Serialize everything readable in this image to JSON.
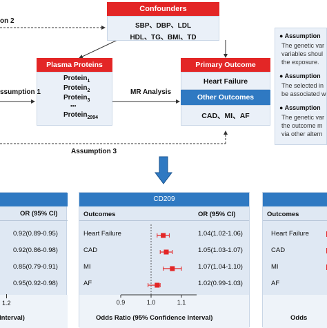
{
  "top": {
    "confounders": {
      "title": "Confounders",
      "line1": "SBP、DBP、LDL",
      "line2": "HDL、TG、BMI、TD"
    },
    "plasma": {
      "title": "Plasma Proteins",
      "p1": "Protein",
      "p1_sub": "1",
      "p2": "Protein",
      "p2_sub": "2",
      "p3": "Protein",
      "p3_sub": "3",
      "dots": "•••",
      "pn": "Protein",
      "pn_sub": "2994"
    },
    "primary": {
      "title": "Primary Outcome",
      "value": "Heart Failure"
    },
    "other": {
      "title": "Other Outcomes",
      "value": "CAD、MI、AF"
    },
    "labels": {
      "assumption1": "ssumption 1",
      "assumption2": "on 2",
      "assumption3": "Assumption 3",
      "mr": "MR Analysis"
    },
    "assumptions": [
      {
        "title": "Assumption",
        "text1": "The genetic var",
        "text2": "variables shoul",
        "text3": "the exposure."
      },
      {
        "title": "Assumption",
        "text1": "The selected in",
        "text2": "be associated w"
      },
      {
        "title": "Assumption",
        "text1": "The genetic var",
        "text2": "the outcome m",
        "text3": "via other altern"
      }
    ]
  },
  "left_panel": {
    "col_header": "OR (95% CI)",
    "values": [
      "0.92(0.89-0.95)",
      "0.92(0.86-0.98)",
      "0.85(0.79-0.91)",
      "0.95(0.92-0.98)"
    ],
    "tick": "1.2",
    "axis_label": "Interval)"
  },
  "center_panel": {
    "title": "CD209",
    "col_outcomes": "Outcomes",
    "col_or": "OR (95% CI)",
    "rows": [
      {
        "outcome": "Heart Failure",
        "or_text": "1.04(1.02-1.06)"
      },
      {
        "outcome": "CAD",
        "or_text": "1.05(1.03-1.07)"
      },
      {
        "outcome": "MI",
        "or_text": "1.07(1.04-1.10)"
      },
      {
        "outcome": "AF",
        "or_text": "1.02(0.99-1.03)"
      }
    ],
    "ticks": [
      "0.9",
      "1.0",
      "1.1"
    ],
    "axis_label": "Odds Ratio (95% Confidence Interval)"
  },
  "right_panel": {
    "col_outcomes": "Outcomes",
    "rows": [
      "Heart Failure",
      "CAD",
      "MI",
      "AF"
    ],
    "axis_label": "Odds"
  },
  "chart_data": {
    "type": "scatter",
    "title": "CD209",
    "categories": [
      "Heart Failure",
      "CAD",
      "MI",
      "AF"
    ],
    "or": [
      1.04,
      1.05,
      1.07,
      1.02
    ],
    "ci_low": [
      1.02,
      1.03,
      1.04,
      0.99
    ],
    "ci_high": [
      1.06,
      1.07,
      1.1,
      1.03
    ],
    "xlabel": "Odds Ratio (95% Confidence Interval)",
    "xlim": [
      0.9,
      1.15
    ],
    "xticks": [
      0.9,
      1.0,
      1.1
    ],
    "reference_line": 1.0,
    "marker_color": "#e32626"
  }
}
